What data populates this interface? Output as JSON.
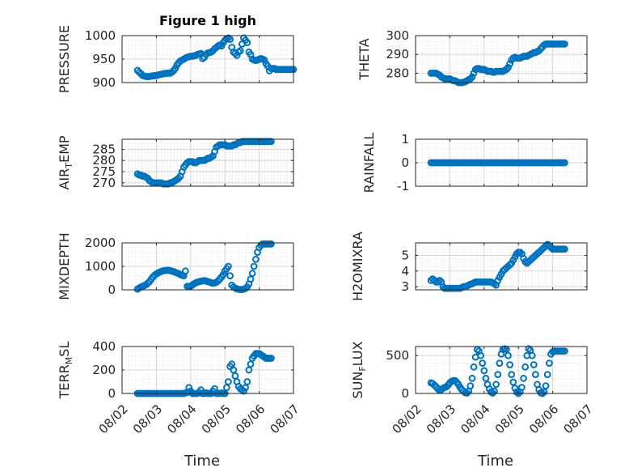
{
  "figure_title": "Figure 1 high",
  "colors": {
    "marker": "#0072bd"
  },
  "x_ticks": [
    "08/02",
    "08/03",
    "08/04",
    "08/05",
    "08/06",
    "08/07"
  ],
  "xlabel": "Time",
  "chart_data": [
    {
      "type": "scatter",
      "id": "pressure",
      "title": "Figure 1 high",
      "ylabel": "PRESSURE",
      "xlim": [
        0,
        5
      ],
      "ylim": [
        900,
        1000
      ],
      "yticks": [
        900,
        950,
        1000
      ],
      "grid": true,
      "minor_grid": true,
      "x": [
        0.45,
        0.5,
        0.55,
        0.6,
        0.65,
        0.7,
        0.75,
        0.8,
        0.85,
        0.9,
        0.95,
        1,
        1.05,
        1.1,
        1.15,
        1.2,
        1.25,
        1.3,
        1.35,
        1.4,
        1.45,
        1.5,
        1.55,
        1.6,
        1.65,
        1.7,
        1.75,
        1.8,
        1.85,
        1.9,
        1.95,
        2,
        2.05,
        2.1,
        2.15,
        2.2,
        2.25,
        2.3,
        2.35,
        2.4,
        2.45,
        2.5,
        2.55,
        2.6,
        2.65,
        2.7,
        2.75,
        2.8,
        2.85,
        2.9,
        2.95,
        3,
        3.05,
        3.1,
        3.15,
        3.2,
        3.25,
        3.3,
        3.35,
        3.4,
        3.45,
        3.5,
        3.55,
        3.6,
        3.65,
        3.7,
        3.75,
        3.8,
        3.85,
        3.9,
        3.95,
        4,
        4.05,
        4.1,
        4.15,
        4.2,
        4.25,
        4.3,
        4.35,
        4.4,
        4.45,
        4.5,
        4.55,
        4.6,
        4.65,
        4.7,
        4.75,
        4.8,
        4.85,
        4.9,
        4.95,
        5
      ],
      "y": [
        926,
        922,
        919,
        915,
        914,
        913,
        913,
        913,
        914,
        914,
        915,
        915,
        916,
        917,
        918,
        919,
        919,
        920,
        920,
        920,
        922,
        925,
        930,
        937,
        942,
        946,
        948,
        950,
        952,
        954,
        955,
        956,
        956,
        957,
        958,
        960,
        961,
        962,
        951,
        954,
        960,
        963,
        964,
        965,
        968,
        972,
        975,
        978,
        980,
        978,
        985,
        990,
        993,
        995,
        992,
        975,
        965,
        962,
        958,
        965,
        968,
        982,
        995,
        990,
        985,
        965,
        960,
        950,
        948,
        947,
        948,
        950,
        951,
        950,
        948,
        940,
        935,
        925,
        930,
        930,
        930,
        928,
        928,
        928,
        928,
        928,
        928,
        928,
        928,
        928,
        928,
        928
      ]
    },
    {
      "type": "scatter",
      "id": "theta",
      "title": "",
      "ylabel": "THETA",
      "xlim": [
        0,
        5
      ],
      "ylim": [
        275,
        300
      ],
      "yticks": [
        280,
        290,
        300
      ],
      "grid": true,
      "minor_grid": true,
      "x": [
        0.45,
        0.5,
        0.55,
        0.6,
        0.65,
        0.7,
        0.75,
        0.8,
        0.85,
        0.9,
        0.95,
        1,
        1.05,
        1.1,
        1.15,
        1.2,
        1.25,
        1.3,
        1.35,
        1.4,
        1.45,
        1.5,
        1.55,
        1.6,
        1.65,
        1.7,
        1.75,
        1.8,
        1.85,
        1.9,
        1.95,
        2,
        2.05,
        2.1,
        2.15,
        2.2,
        2.25,
        2.3,
        2.35,
        2.4,
        2.45,
        2.5,
        2.55,
        2.6,
        2.65,
        2.7,
        2.75,
        2.8,
        2.85,
        2.9,
        2.95,
        3,
        3.05,
        3.1,
        3.15,
        3.2,
        3.25,
        3.3,
        3.35,
        3.4,
        3.45,
        3.5,
        3.55,
        3.6,
        3.65,
        3.7,
        3.75,
        3.8,
        3.85,
        3.9,
        3.95,
        4,
        4.05,
        4.1,
        4.15,
        4.2,
        4.25,
        4.3,
        4.35
      ],
      "y": [
        280,
        280,
        280,
        280,
        279.5,
        279,
        278,
        277.5,
        277,
        277,
        277,
        277,
        276.5,
        276,
        276,
        275.5,
        275,
        275,
        275,
        275.2,
        275.5,
        276,
        276.5,
        277,
        278,
        280,
        282,
        282.5,
        282.5,
        282,
        282,
        282,
        281.5,
        281,
        281,
        281,
        280.5,
        280.5,
        281,
        281,
        281,
        281,
        281,
        281.5,
        282,
        283,
        285,
        287,
        288,
        288.5,
        288,
        288,
        288,
        288.5,
        289,
        289,
        289,
        289.5,
        290,
        290.5,
        291,
        291,
        291.5,
        292,
        293,
        294,
        295,
        295.5,
        295.5,
        295.5,
        295.5,
        295.5,
        295.5,
        295.5,
        295.5,
        295.5,
        295.5,
        295.5,
        295.5
      ]
    },
    {
      "type": "scatter",
      "id": "air_temp",
      "title": "",
      "ylabel": "AIR_TEMP",
      "xlim": [
        0,
        5
      ],
      "ylim": [
        268.5,
        289.5
      ],
      "yticks": [
        270,
        275,
        280,
        285
      ],
      "grid": true,
      "minor_grid": true,
      "x": [
        0.45,
        0.5,
        0.55,
        0.6,
        0.65,
        0.7,
        0.75,
        0.8,
        0.85,
        0.9,
        0.95,
        1,
        1.05,
        1.1,
        1.15,
        1.2,
        1.25,
        1.3,
        1.35,
        1.4,
        1.45,
        1.5,
        1.55,
        1.6,
        1.65,
        1.7,
        1.75,
        1.8,
        1.85,
        1.9,
        1.95,
        2,
        2.05,
        2.1,
        2.15,
        2.2,
        2.25,
        2.3,
        2.35,
        2.4,
        2.45,
        2.5,
        2.55,
        2.6,
        2.65,
        2.7,
        2.75,
        2.8,
        2.85,
        2.9,
        2.95,
        3,
        3.05,
        3.1,
        3.15,
        3.2,
        3.25,
        3.3,
        3.35,
        3.4,
        3.45,
        3.5,
        3.55,
        3.6,
        3.65,
        3.7,
        3.75,
        3.8,
        3.85,
        3.9,
        3.95,
        4,
        4.05,
        4.1,
        4.15,
        4.2,
        4.25,
        4.3,
        4.35
      ],
      "y": [
        274,
        273.5,
        273.5,
        273,
        273,
        272.5,
        272,
        271,
        270.5,
        270,
        270,
        270,
        270,
        270,
        270,
        269.5,
        269.5,
        269.5,
        269.5,
        270,
        270,
        270.5,
        271,
        271.5,
        272,
        273,
        275,
        277,
        278,
        279,
        279.5,
        279.5,
        279.5,
        279,
        279,
        279.5,
        280,
        280,
        280,
        280,
        280.5,
        281,
        281,
        281.5,
        282,
        284,
        286,
        286.5,
        287,
        287,
        287,
        287,
        286.5,
        286.5,
        286.5,
        286.5,
        287,
        287,
        287.5,
        288,
        288,
        288.5,
        288.5,
        288.5,
        288.5,
        288.5,
        288.5,
        288.5,
        288.5,
        288.5,
        288.5,
        288.5,
        288.5,
        288.5,
        288.5,
        288.5,
        288.5,
        288.5,
        288.5
      ]
    },
    {
      "type": "scatter",
      "id": "rainfall",
      "title": "",
      "ylabel": "RAINFALL",
      "xlim": [
        0,
        5
      ],
      "ylim": [
        -1,
        1
      ],
      "yticks": [
        -1,
        0,
        1
      ],
      "grid": true,
      "minor_grid": true,
      "x": [
        0.45,
        0.5,
        0.55,
        0.6,
        0.65,
        0.7,
        0.75,
        0.8,
        0.85,
        0.9,
        0.95,
        1,
        1.05,
        1.1,
        1.15,
        1.2,
        1.25,
        1.3,
        1.35,
        1.4,
        1.45,
        1.5,
        1.55,
        1.6,
        1.65,
        1.7,
        1.75,
        1.8,
        1.85,
        1.9,
        1.95,
        2,
        2.05,
        2.1,
        2.15,
        2.2,
        2.25,
        2.3,
        2.35,
        2.4,
        2.45,
        2.5,
        2.55,
        2.6,
        2.65,
        2.7,
        2.75,
        2.8,
        2.85,
        2.9,
        2.95,
        3,
        3.05,
        3.1,
        3.15,
        3.2,
        3.25,
        3.3,
        3.35,
        3.4,
        3.45,
        3.5,
        3.55,
        3.6,
        3.65,
        3.7,
        3.75,
        3.8,
        3.85,
        3.9,
        3.95,
        4,
        4.05,
        4.1,
        4.15,
        4.2,
        4.25,
        4.3,
        4.35
      ],
      "y": [
        0,
        0,
        0,
        0,
        0,
        0,
        0,
        0,
        0,
        0,
        0,
        0,
        0,
        0,
        0,
        0,
        0,
        0,
        0,
        0,
        0,
        0,
        0,
        0,
        0,
        0,
        0,
        0,
        0,
        0,
        0,
        0,
        0,
        0,
        0,
        0,
        0,
        0,
        0,
        0,
        0,
        0,
        0,
        0,
        0,
        0,
        0,
        0,
        0,
        0,
        0,
        0,
        0,
        0,
        0,
        0,
        0,
        0,
        0,
        0,
        0,
        0,
        0,
        0,
        0,
        0,
        0,
        0,
        0,
        0,
        0,
        0,
        0,
        0,
        0,
        0,
        0,
        0,
        0
      ]
    },
    {
      "type": "scatter",
      "id": "mixdepth",
      "title": "",
      "ylabel": "MIXDEPTH",
      "xlim": [
        0,
        5
      ],
      "ylim": [
        0,
        2000
      ],
      "yticks": [
        0,
        1000,
        2000
      ],
      "grid": true,
      "minor_grid": true,
      "x": [
        0.45,
        0.5,
        0.55,
        0.6,
        0.65,
        0.7,
        0.75,
        0.8,
        0.85,
        0.9,
        0.95,
        1,
        1.05,
        1.1,
        1.15,
        1.2,
        1.25,
        1.3,
        1.35,
        1.4,
        1.45,
        1.5,
        1.55,
        1.6,
        1.65,
        1.7,
        1.75,
        1.8,
        1.85,
        1.9,
        1.95,
        2,
        2.05,
        2.1,
        2.15,
        2.2,
        2.25,
        2.3,
        2.35,
        2.4,
        2.45,
        2.5,
        2.55,
        2.6,
        2.65,
        2.7,
        2.75,
        2.8,
        2.85,
        2.9,
        2.95,
        3,
        3.05,
        3.1,
        3.15,
        3.2,
        3.25,
        3.3,
        3.35,
        3.4,
        3.45,
        3.5,
        3.55,
        3.6,
        3.65,
        3.7,
        3.75,
        3.8,
        3.85,
        3.9,
        3.95,
        4,
        4.05,
        4.1,
        4.15,
        4.2,
        4.25,
        4.3,
        4.35
      ],
      "y": [
        30,
        80,
        120,
        150,
        180,
        220,
        280,
        350,
        450,
        550,
        620,
        680,
        720,
        760,
        790,
        810,
        820,
        830,
        830,
        820,
        800,
        780,
        750,
        720,
        690,
        650,
        620,
        600,
        800,
        150,
        150,
        160,
        200,
        260,
        300,
        330,
        350,
        370,
        380,
        390,
        380,
        350,
        330,
        300,
        280,
        300,
        320,
        380,
        450,
        550,
        650,
        800,
        900,
        1000,
        600,
        200,
        120,
        80,
        40,
        20,
        10,
        15,
        30,
        60,
        120,
        250,
        450,
        700,
        1000,
        1300,
        1600,
        1800,
        1900,
        1950,
        1950,
        1950,
        1950,
        1950,
        1950
      ]
    },
    {
      "type": "scatter",
      "id": "h2omixra",
      "title": "",
      "ylabel": "H2OMIXRA",
      "xlim": [
        0,
        5
      ],
      "ylim": [
        2.8,
        5.8
      ],
      "yticks": [
        3,
        4,
        5
      ],
      "grid": true,
      "minor_grid": true,
      "x": [
        0.45,
        0.5,
        0.55,
        0.6,
        0.65,
        0.7,
        0.75,
        0.8,
        0.85,
        0.9,
        0.95,
        1,
        1.05,
        1.1,
        1.15,
        1.2,
        1.25,
        1.3,
        1.35,
        1.4,
        1.45,
        1.5,
        1.55,
        1.6,
        1.65,
        1.7,
        1.75,
        1.8,
        1.85,
        1.9,
        1.95,
        2,
        2.05,
        2.1,
        2.15,
        2.2,
        2.25,
        2.3,
        2.35,
        2.4,
        2.45,
        2.5,
        2.55,
        2.6,
        2.65,
        2.7,
        2.75,
        2.8,
        2.85,
        2.9,
        2.95,
        3,
        3.05,
        3.1,
        3.15,
        3.2,
        3.25,
        3.3,
        3.35,
        3.4,
        3.45,
        3.5,
        3.55,
        3.6,
        3.65,
        3.7,
        3.75,
        3.8,
        3.85,
        3.9,
        3.95,
        4,
        4.05,
        4.1,
        4.15,
        4.2,
        4.25,
        4.3,
        4.35
      ],
      "y": [
        3.4,
        3.5,
        3.4,
        3.3,
        3.3,
        3.4,
        3.3,
        3,
        2.9,
        2.9,
        2.9,
        2.9,
        2.9,
        2.9,
        2.9,
        2.9,
        2.9,
        2.9,
        2.95,
        3,
        3,
        3.05,
        3.1,
        3.15,
        3.2,
        3.25,
        3.3,
        3.3,
        3.3,
        3.3,
        3.3,
        3.3,
        3.3,
        3.3,
        3.3,
        3.3,
        3.25,
        3.2,
        3.1,
        3.4,
        3.6,
        3.8,
        4,
        4.1,
        4.2,
        4.3,
        4.4,
        4.5,
        4.7,
        4.9,
        5.1,
        5.2,
        5.2,
        5.1,
        4.8,
        4.6,
        4.5,
        4.6,
        4.7,
        4.8,
        4.9,
        5,
        5.1,
        5.2,
        5.3,
        5.4,
        5.5,
        5.6,
        5.7,
        5.6,
        5.5,
        5.4,
        5.4,
        5.4,
        5.4,
        5.4,
        5.4,
        5.4,
        5.4
      ]
    },
    {
      "type": "scatter",
      "id": "terr_msl",
      "title": "",
      "ylabel": "TERR_MSL",
      "xlim": [
        0,
        5
      ],
      "ylim": [
        0,
        400
      ],
      "yticks": [
        0,
        200,
        400
      ],
      "grid": true,
      "minor_grid": true,
      "x": [
        0.45,
        0.5,
        0.55,
        0.6,
        0.65,
        0.7,
        0.75,
        0.8,
        0.85,
        0.9,
        0.95,
        1,
        1.05,
        1.1,
        1.15,
        1.2,
        1.25,
        1.3,
        1.35,
        1.4,
        1.45,
        1.5,
        1.55,
        1.6,
        1.65,
        1.7,
        1.75,
        1.8,
        1.85,
        1.9,
        1.95,
        2,
        2.05,
        2.1,
        2.15,
        2.2,
        2.25,
        2.3,
        2.35,
        2.4,
        2.45,
        2.5,
        2.55,
        2.6,
        2.65,
        2.7,
        2.75,
        2.8,
        2.85,
        2.9,
        2.95,
        3,
        3.05,
        3.1,
        3.15,
        3.2,
        3.25,
        3.3,
        3.35,
        3.4,
        3.45,
        3.5,
        3.55,
        3.6,
        3.65,
        3.7,
        3.75,
        3.8,
        3.85,
        3.9,
        3.95,
        4,
        4.05,
        4.1,
        4.15,
        4.2,
        4.25,
        4.3,
        4.35
      ],
      "y": [
        0,
        0,
        0,
        0,
        0,
        0,
        0,
        0,
        0,
        0,
        0,
        0,
        0,
        0,
        0,
        0,
        0,
        0,
        0,
        0,
        0,
        0,
        0,
        0,
        0,
        0,
        0,
        0,
        5,
        10,
        50,
        20,
        0,
        0,
        0,
        0,
        10,
        30,
        0,
        0,
        5,
        0,
        0,
        0,
        20,
        40,
        0,
        0,
        0,
        5,
        0,
        0,
        50,
        100,
        230,
        250,
        200,
        150,
        100,
        60,
        40,
        30,
        20,
        50,
        100,
        200,
        250,
        300,
        320,
        340,
        340,
        340,
        330,
        320,
        310,
        300,
        300,
        300,
        300
      ]
    },
    {
      "type": "scatter",
      "id": "sun_flux",
      "title": "",
      "ylabel": "SUN_FLUX",
      "xlim": [
        0,
        5
      ],
      "ylim": [
        0,
        620
      ],
      "yticks": [
        0,
        500
      ],
      "grid": true,
      "minor_grid": true,
      "x": [
        0.45,
        0.5,
        0.55,
        0.6,
        0.65,
        0.7,
        0.75,
        0.8,
        0.85,
        0.9,
        0.95,
        1,
        1.05,
        1.1,
        1.15,
        1.2,
        1.25,
        1.3,
        1.35,
        1.4,
        1.45,
        1.5,
        1.55,
        1.6,
        1.65,
        1.7,
        1.75,
        1.8,
        1.85,
        1.9,
        1.95,
        2,
        2.05,
        2.1,
        2.15,
        2.2,
        2.25,
        2.3,
        2.35,
        2.4,
        2.45,
        2.5,
        2.55,
        2.6,
        2.65,
        2.7,
        2.75,
        2.8,
        2.85,
        2.9,
        2.95,
        3,
        3.05,
        3.1,
        3.15,
        3.2,
        3.25,
        3.3,
        3.35,
        3.4,
        3.45,
        3.5,
        3.55,
        3.6,
        3.65,
        3.7,
        3.75,
        3.8,
        3.85,
        3.9,
        3.95,
        4,
        4.05,
        4.1,
        4.15,
        4.2,
        4.25,
        4.3,
        4.35
      ],
      "y": [
        140,
        130,
        110,
        90,
        60,
        40,
        50,
        70,
        80,
        90,
        110,
        140,
        160,
        170,
        170,
        150,
        120,
        80,
        50,
        30,
        10,
        5,
        30,
        100,
        200,
        350,
        480,
        580,
        560,
        500,
        400,
        300,
        200,
        120,
        60,
        20,
        5,
        30,
        120,
        250,
        400,
        520,
        580,
        590,
        580,
        500,
        380,
        250,
        150,
        70,
        20,
        0,
        20,
        80,
        200,
        350,
        500,
        590,
        570,
        500,
        380,
        250,
        120,
        50,
        10,
        0,
        20,
        100,
        250,
        400,
        520,
        550,
        560,
        560,
        560,
        560,
        560,
        560,
        560
      ]
    }
  ]
}
